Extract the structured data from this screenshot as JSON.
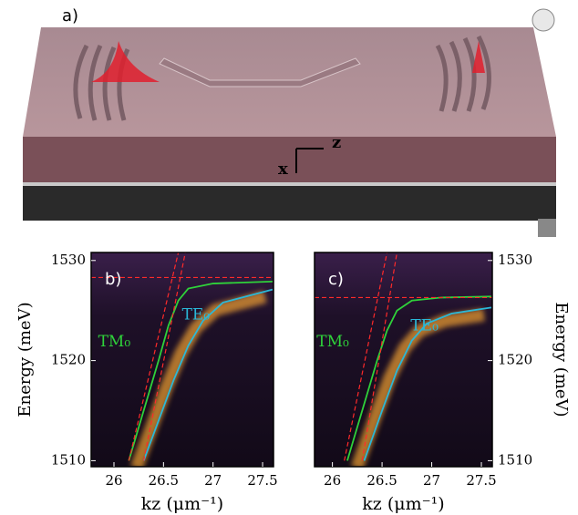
{
  "figure": {
    "panel_label": "a)",
    "axis_z": "z",
    "axis_x": "x"
  },
  "chart_data": [
    {
      "type": "line",
      "panel_label": "b)",
      "y_axis": "left",
      "x_label": "kz (μm⁻¹)",
      "y_label": "Energy (meV)",
      "xlim": [
        25.77,
        27.61
      ],
      "ylim": [
        1509.4,
        1530.8
      ],
      "xticks": [
        26,
        26.5,
        27,
        27.5
      ],
      "yticks": [
        1510,
        1520,
        1530
      ],
      "series": [
        {
          "name": "TM₀",
          "color": "#2fd23a",
          "x": [
            26.15,
            26.3,
            26.45,
            26.55,
            26.65,
            26.75,
            27.0,
            27.6
          ],
          "values": [
            1510,
            1515,
            1520,
            1523.5,
            1526,
            1527.2,
            1527.7,
            1527.9
          ]
        },
        {
          "name": "TE₀",
          "color": "#2ab8d8",
          "x": [
            26.3,
            26.45,
            26.6,
            26.75,
            26.9,
            27.1,
            27.6
          ],
          "values": [
            1510,
            1514,
            1518,
            1521.5,
            1524,
            1525.8,
            1527.1
          ]
        },
        {
          "color": "#ff2a2a",
          "dash": true,
          "x": [
            26.15,
            26.65
          ],
          "values": [
            1510,
            1530.8
          ]
        },
        {
          "color": "#ff2a2a",
          "dash": true,
          "x": [
            26.3,
            26.72
          ],
          "values": [
            1510,
            1530.8
          ]
        },
        {
          "color": "#ff2a2a",
          "dash": true,
          "x": [
            25.77,
            27.61
          ],
          "values": [
            1528.3,
            1528.3
          ]
        }
      ]
    },
    {
      "type": "line",
      "panel_label": "c)",
      "y_axis": "right",
      "x_label": "kz (μm⁻¹)",
      "y_label": "Energy (meV)",
      "xlim": [
        25.82,
        27.61
      ],
      "ylim": [
        1509.4,
        1530.8
      ],
      "xticks": [
        26,
        26.5,
        27,
        27.5
      ],
      "yticks": [
        1510,
        1520,
        1530
      ],
      "series": [
        {
          "name": "TM₀",
          "color": "#2fd23a",
          "x": [
            26.15,
            26.3,
            26.45,
            26.55,
            26.65,
            26.8,
            27.1,
            27.6
          ],
          "values": [
            1510,
            1515,
            1520,
            1523,
            1525,
            1526,
            1526.3,
            1526.4
          ]
        },
        {
          "name": "TE₀",
          "color": "#2ab8d8",
          "x": [
            26.32,
            26.5,
            26.65,
            26.8,
            26.95,
            27.2,
            27.6
          ],
          "values": [
            1510,
            1515,
            1519,
            1522,
            1523.7,
            1524.7,
            1525.3
          ]
        },
        {
          "color": "#ff2a2a",
          "dash": true,
          "x": [
            26.12,
            26.55
          ],
          "values": [
            1510,
            1530.8
          ]
        },
        {
          "color": "#ff2a2a",
          "dash": true,
          "x": [
            26.3,
            26.65
          ],
          "values": [
            1510,
            1530.8
          ]
        },
        {
          "color": "#ff2a2a",
          "dash": true,
          "x": [
            25.82,
            27.61
          ],
          "values": [
            1526.3,
            1526.3
          ]
        }
      ]
    }
  ]
}
